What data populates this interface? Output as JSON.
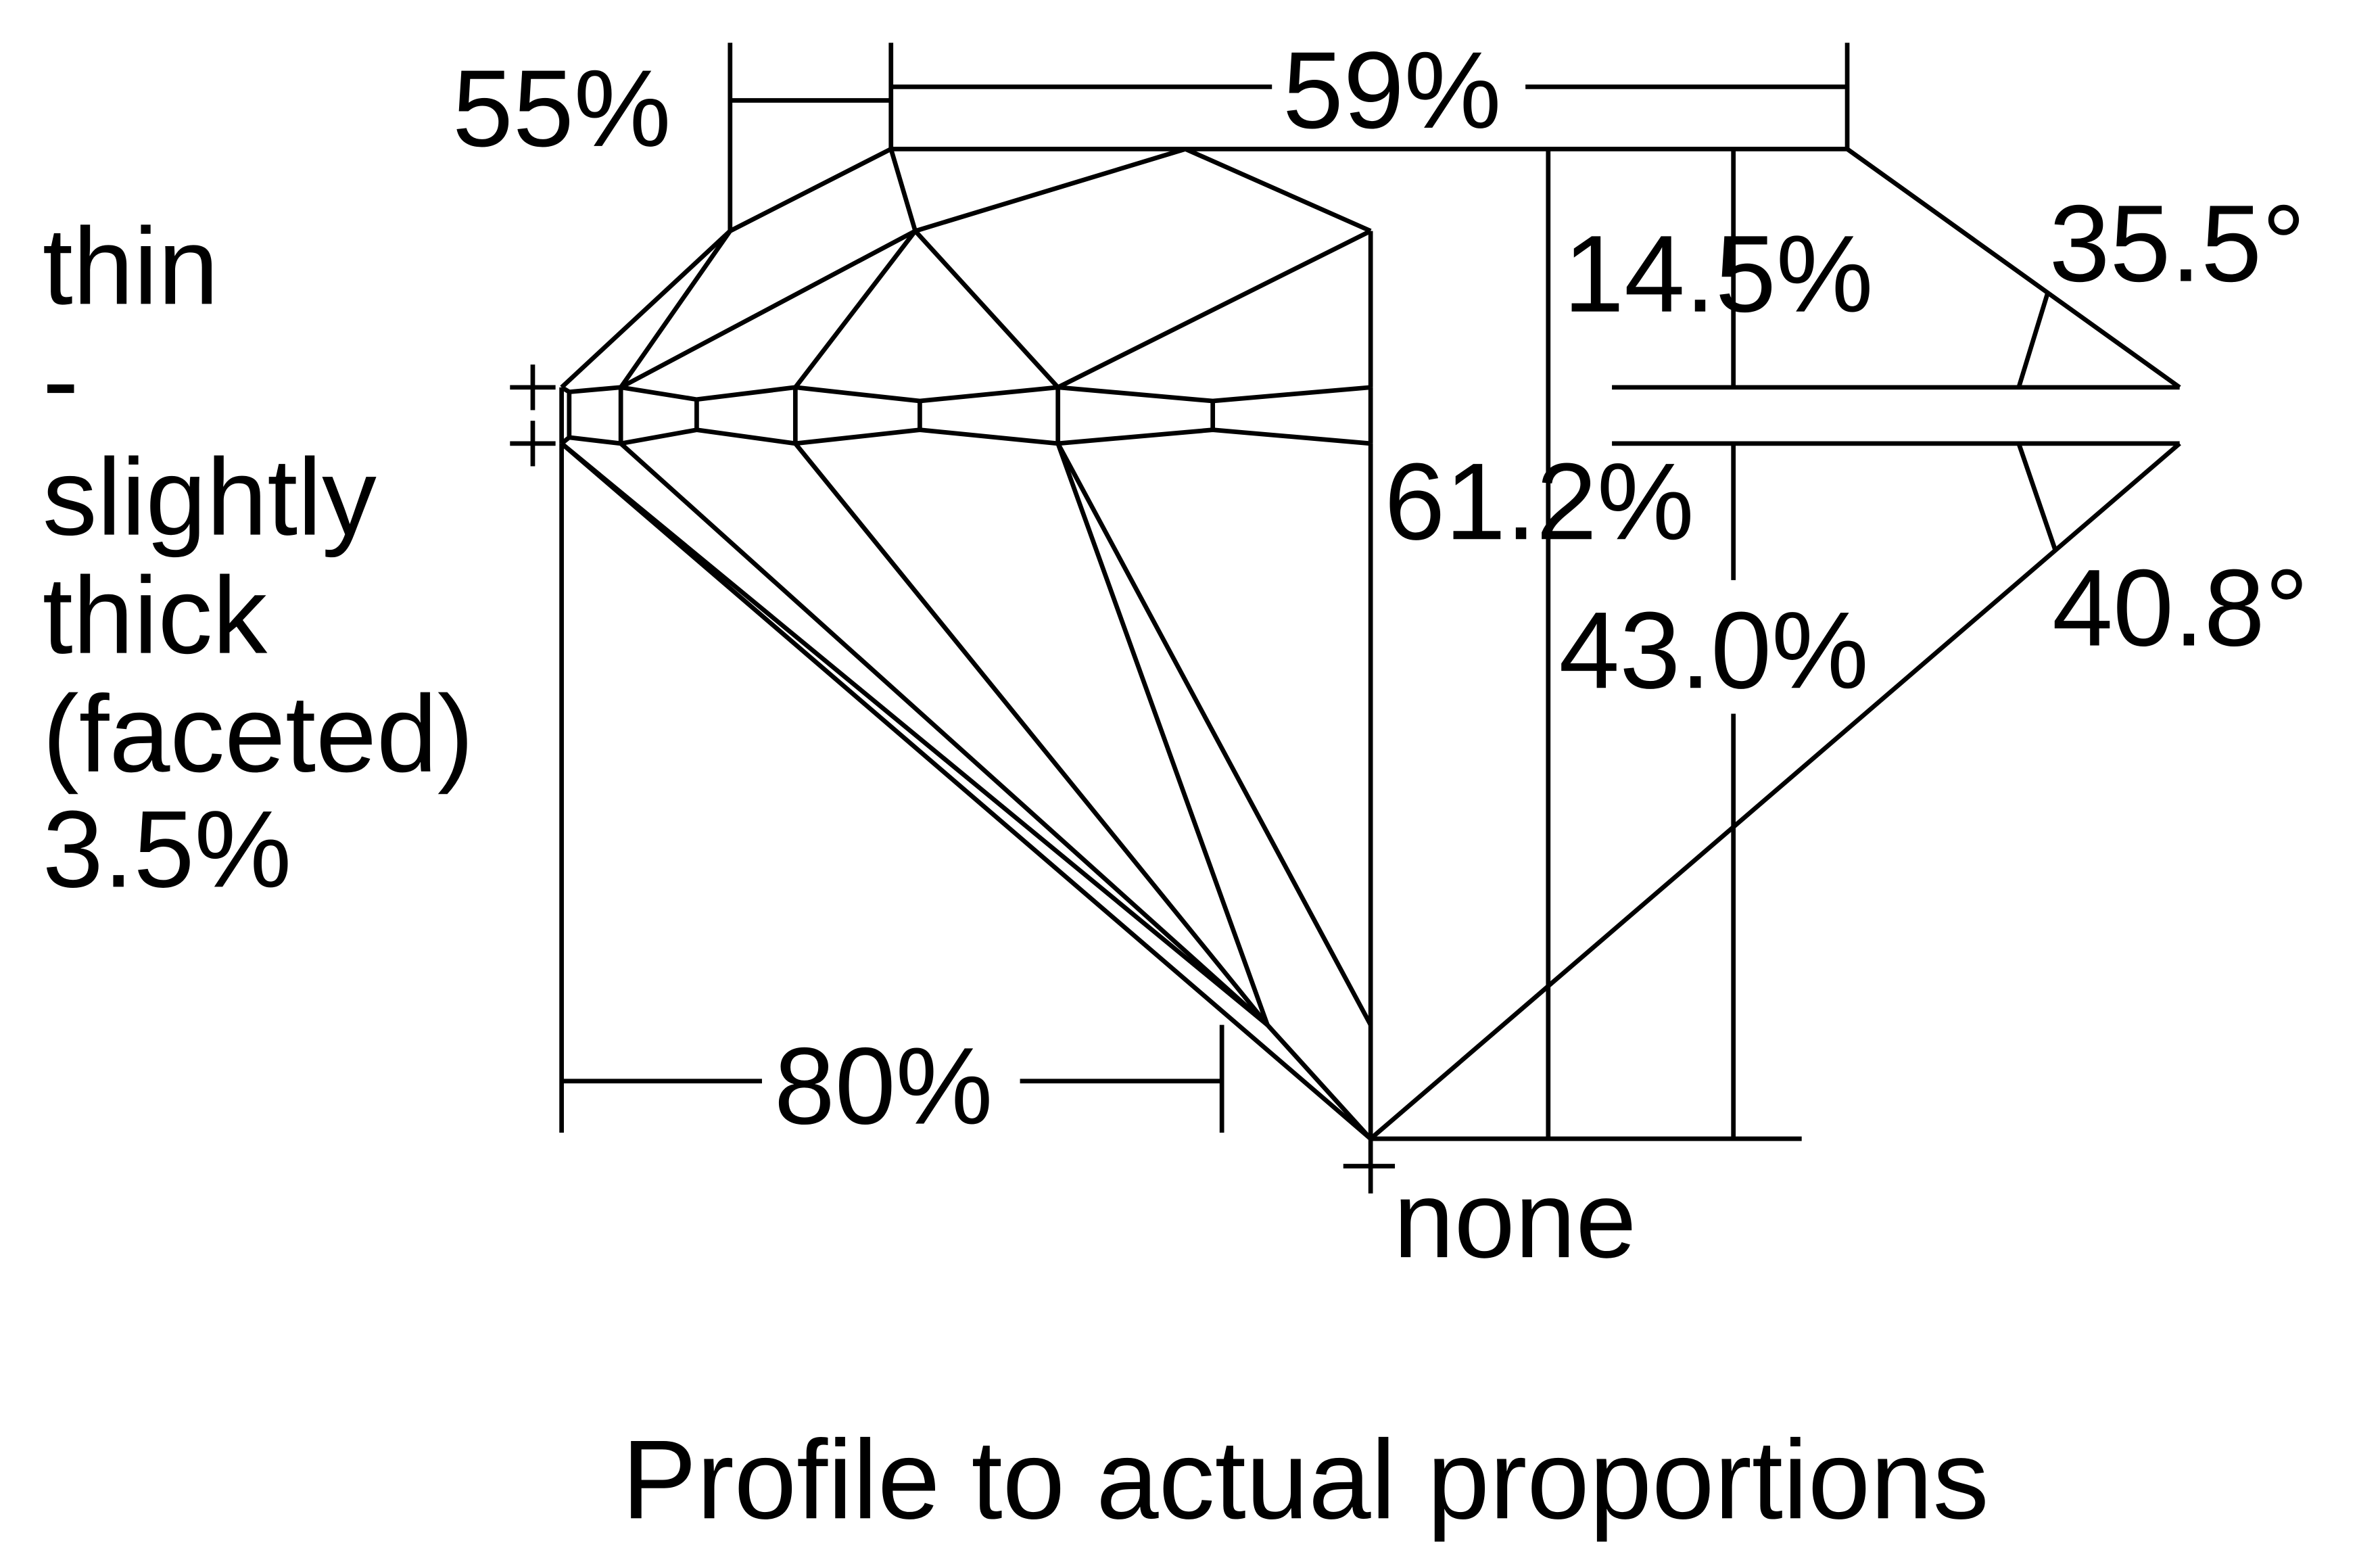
{
  "labels": {
    "crown_left": "55%",
    "table": "59%",
    "crown_height": "14.5%",
    "total_depth": "61.2%",
    "pavilion_depth": "43.0%",
    "crown_angle": "35.5°",
    "pavilion_angle": "40.8°",
    "lower_half": "80%",
    "culet": "none",
    "girdle": [
      "thin",
      "-",
      "slightly",
      "thick",
      "(faceted)",
      "3.5%"
    ]
  },
  "caption": "Profile to actual proportions"
}
